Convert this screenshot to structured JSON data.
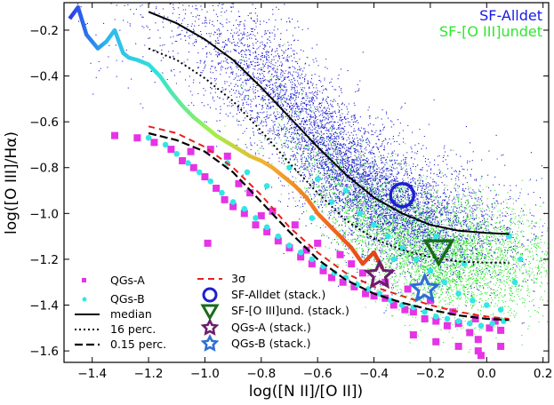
{
  "chart_data": {
    "type": "scatter",
    "xlabel": "log([N II]/[O II])",
    "ylabel": "log([O III]/Hα)",
    "xlim": [
      -1.5,
      0.22
    ],
    "ylim": [
      -1.65,
      -0.08
    ],
    "x_ticks": [
      -1.4,
      -1.2,
      -1.0,
      -0.8,
      -0.6,
      -0.4,
      -0.2,
      0.0,
      0.2
    ],
    "x_tick_labels": [
      "−1.4",
      "−1.2",
      "−1.0",
      "−0.8",
      "−0.6",
      "−0.4",
      "−0.2",
      "0.0",
      "0.2"
    ],
    "y_ticks": [
      -0.2,
      -0.4,
      -0.6,
      -0.8,
      -1.0,
      -1.2,
      -1.4,
      -1.6
    ],
    "y_tick_labels": [
      "−0.2",
      "−0.4",
      "−0.6",
      "−0.8",
      "−1.0",
      "−1.2",
      "−1.4",
      "−1.6"
    ],
    "corner_labels": [
      {
        "text": "SF-Alldet",
        "color": "#1a1ae6"
      },
      {
        "text": "SF-[O III]undet",
        "color": "#2ee82e"
      }
    ],
    "colors": {
      "sf_alldet": "#1f1fd0",
      "sf_oiii_undet": "#33e833",
      "qgs_a": "#e633e6",
      "qgs_b": "#33e6e6",
      "sigma": "#e62020",
      "star_a": "#6b1f6b",
      "star_b": "#2f6fd6",
      "triangle": "#1a6b1a"
    },
    "curves": {
      "median": {
        "x": [
          -1.2,
          -1.1,
          -1.0,
          -0.9,
          -0.8,
          -0.7,
          -0.6,
          -0.5,
          -0.4,
          -0.3,
          -0.2,
          -0.1,
          0.0,
          0.08
        ],
        "y": [
          -0.12,
          -0.17,
          -0.24,
          -0.33,
          -0.45,
          -0.58,
          -0.71,
          -0.83,
          -0.93,
          -1.0,
          -1.05,
          -1.075,
          -1.085,
          -1.09
        ]
      },
      "p16": {
        "x": [
          -1.2,
          -1.1,
          -1.0,
          -0.9,
          -0.8,
          -0.7,
          -0.6,
          -0.5,
          -0.4,
          -0.3,
          -0.2,
          -0.1,
          0.0,
          0.08
        ],
        "y": [
          -0.28,
          -0.33,
          -0.41,
          -0.51,
          -0.64,
          -0.78,
          -0.91,
          -1.03,
          -1.11,
          -1.16,
          -1.19,
          -1.21,
          -1.215,
          -1.215
        ]
      },
      "p015": {
        "x": [
          -1.2,
          -1.1,
          -1.0,
          -0.9,
          -0.8,
          -0.7,
          -0.6,
          -0.5,
          -0.4,
          -0.3,
          -0.2,
          -0.1,
          0.0,
          0.08
        ],
        "y": [
          -0.65,
          -0.68,
          -0.73,
          -0.82,
          -0.95,
          -1.08,
          -1.2,
          -1.29,
          -1.35,
          -1.39,
          -1.42,
          -1.445,
          -1.46,
          -1.465
        ]
      },
      "sigma3": {
        "x": [
          -1.2,
          -1.1,
          -1.0,
          -0.9,
          -0.8,
          -0.7,
          -0.6,
          -0.5,
          -0.4,
          -0.3,
          -0.2,
          -0.1,
          0.0,
          0.08
        ],
        "y": [
          -0.62,
          -0.65,
          -0.71,
          -0.8,
          -0.92,
          -1.06,
          -1.17,
          -1.26,
          -1.32,
          -1.36,
          -1.4,
          -1.43,
          -1.45,
          -1.46
        ]
      },
      "completeness": {
        "x": [
          -1.48,
          -1.45,
          -1.42,
          -1.38,
          -1.35,
          -1.32,
          -1.29,
          -1.27,
          -1.24,
          -1.2,
          -1.16,
          -1.12,
          -1.08,
          -1.04,
          -1.0,
          -0.96,
          -0.92,
          -0.88,
          -0.84,
          -0.8,
          -0.76,
          -0.72,
          -0.68,
          -0.64,
          -0.6,
          -0.56,
          -0.52,
          -0.48,
          -0.44,
          -0.4,
          -0.37
        ],
        "y": [
          -0.15,
          -0.1,
          -0.22,
          -0.28,
          -0.25,
          -0.2,
          -0.3,
          -0.32,
          -0.33,
          -0.35,
          -0.4,
          -0.47,
          -0.53,
          -0.58,
          -0.62,
          -0.66,
          -0.69,
          -0.72,
          -0.75,
          -0.77,
          -0.8,
          -0.84,
          -0.88,
          -0.93,
          -1.0,
          -1.05,
          -1.1,
          -1.15,
          -1.22,
          -1.17,
          -1.24
        ]
      }
    },
    "stacked_points": [
      {
        "name": "SF-Alldet (stack.)",
        "marker": "circle",
        "x": -0.3,
        "y": -0.92
      },
      {
        "name": "SF-[O III]und. (stack.)",
        "marker": "triangle",
        "x": -0.17,
        "y": -1.17
      },
      {
        "name": "QGs-A (stack.)",
        "marker": "star",
        "x": -0.38,
        "y": -1.27
      },
      {
        "name": "QGs-B (stack.)",
        "marker": "star",
        "x": -0.22,
        "y": -1.33
      }
    ],
    "qgs_a_points": [
      [
        -1.24,
        -0.67
      ],
      [
        -1.32,
        -0.66
      ],
      [
        -1.18,
        -0.69
      ],
      [
        -1.12,
        -0.72
      ],
      [
        -1.08,
        -0.77
      ],
      [
        -1.04,
        -0.8
      ],
      [
        -1.0,
        -0.84
      ],
      [
        -0.96,
        -0.89
      ],
      [
        -0.93,
        -0.94
      ],
      [
        -0.9,
        -0.97
      ],
      [
        -0.86,
        -1.0
      ],
      [
        -0.82,
        -1.05
      ],
      [
        -0.78,
        -1.08
      ],
      [
        -0.74,
        -1.12
      ],
      [
        -0.7,
        -1.15
      ],
      [
        -0.66,
        -1.19
      ],
      [
        -0.62,
        -1.22
      ],
      [
        -0.58,
        -1.25
      ],
      [
        -0.55,
        -1.28
      ],
      [
        -0.51,
        -1.3
      ],
      [
        -0.47,
        -1.32
      ],
      [
        -0.43,
        -1.35
      ],
      [
        -0.4,
        -1.36
      ],
      [
        -0.36,
        -1.37
      ],
      [
        -0.33,
        -1.4
      ],
      [
        -0.29,
        -1.42
      ],
      [
        -0.26,
        -1.43
      ],
      [
        -0.22,
        -1.46
      ],
      [
        -0.18,
        -1.47
      ],
      [
        -0.14,
        -1.49
      ],
      [
        -0.1,
        -1.48
      ],
      [
        -0.06,
        -1.52
      ],
      [
        -0.03,
        -1.55
      ],
      [
        0.01,
        -1.5
      ],
      [
        0.05,
        -1.51
      ],
      [
        -0.99,
        -1.13
      ],
      [
        -0.92,
        -0.75
      ],
      [
        -0.98,
        -0.72
      ],
      [
        -0.84,
        -0.91
      ],
      [
        -0.76,
        -0.99
      ],
      [
        -0.68,
        -1.05
      ],
      [
        -0.6,
        -1.13
      ],
      [
        -0.52,
        -1.18
      ],
      [
        -0.44,
        -1.26
      ],
      [
        -0.36,
        -1.3
      ],
      [
        -0.28,
        -1.33
      ],
      [
        -0.2,
        -1.38
      ],
      [
        -0.12,
        -1.43
      ],
      [
        -0.04,
        -1.46
      ],
      [
        0.03,
        -1.47
      ],
      [
        -0.26,
        -1.53
      ],
      [
        -0.18,
        -1.56
      ],
      [
        -0.1,
        -1.58
      ],
      [
        -0.03,
        -1.6
      ],
      [
        -0.02,
        -1.62
      ],
      [
        0.05,
        -1.58
      ],
      [
        -0.48,
        -1.22
      ],
      [
        -0.64,
        -1.16
      ],
      [
        -0.8,
        -1.01
      ],
      [
        -0.88,
        -0.87
      ],
      [
        -1.05,
        -0.73
      ]
    ],
    "qgs_b_points": [
      [
        -1.2,
        -0.67
      ],
      [
        -1.14,
        -0.7
      ],
      [
        -1.1,
        -0.74
      ],
      [
        -1.06,
        -0.78
      ],
      [
        -1.02,
        -0.82
      ],
      [
        -0.98,
        -0.86
      ],
      [
        -0.94,
        -0.91
      ],
      [
        -0.9,
        -0.95
      ],
      [
        -0.86,
        -0.98
      ],
      [
        -0.82,
        -1.02
      ],
      [
        -0.78,
        -1.06
      ],
      [
        -0.74,
        -1.1
      ],
      [
        -0.7,
        -1.14
      ],
      [
        -0.66,
        -1.17
      ],
      [
        -0.62,
        -1.2
      ],
      [
        -0.58,
        -1.23
      ],
      [
        -0.54,
        -1.26
      ],
      [
        -0.5,
        -1.28
      ],
      [
        -0.46,
        -1.31
      ],
      [
        -0.42,
        -1.33
      ],
      [
        -0.38,
        -1.35
      ],
      [
        -0.34,
        -1.38
      ],
      [
        -0.3,
        -1.4
      ],
      [
        -0.26,
        -1.41
      ],
      [
        -0.22,
        -1.43
      ],
      [
        -0.18,
        -1.45
      ],
      [
        -0.14,
        -1.46
      ],
      [
        -0.1,
        -1.47
      ],
      [
        -0.06,
        -1.48
      ],
      [
        -0.02,
        -1.49
      ],
      [
        0.02,
        -1.48
      ],
      [
        0.06,
        -1.47
      ],
      [
        -0.7,
        -0.8
      ],
      [
        -0.6,
        -0.85
      ],
      [
        -0.5,
        -0.9
      ],
      [
        -0.45,
        -1.0
      ],
      [
        -0.4,
        -1.05
      ],
      [
        -0.35,
        -1.1
      ],
      [
        -0.3,
        -1.15
      ],
      [
        -0.25,
        -1.2
      ],
      [
        -0.2,
        -1.25
      ],
      [
        -0.15,
        -1.3
      ],
      [
        -0.1,
        -1.35
      ],
      [
        -0.05,
        -1.38
      ],
      [
        0.0,
        -1.4
      ],
      [
        0.05,
        -1.42
      ],
      [
        0.1,
        -1.3
      ],
      [
        0.12,
        -1.2
      ],
      [
        0.08,
        -1.1
      ],
      [
        -0.55,
        -0.95
      ],
      [
        -0.62,
        -1.02
      ],
      [
        -0.78,
        -0.88
      ],
      [
        -0.85,
        -0.82
      ],
      [
        -0.92,
        -0.78
      ],
      [
        -0.33,
        -1.2
      ],
      [
        -0.18,
        -1.1
      ],
      [
        -0.08,
        -1.22
      ]
    ]
  },
  "legend": {
    "items": [
      {
        "label": "QGs-A"
      },
      {
        "label": "QGs-B"
      },
      {
        "label": "median"
      },
      {
        "label": "16 perc."
      },
      {
        "label": "0.15 perc."
      },
      {
        "label": "3σ"
      },
      {
        "label": "SF-Alldet (stack.)"
      },
      {
        "label": "SF-[O III]und. (stack.)"
      },
      {
        "label": "QGs-A (stack.)"
      },
      {
        "label": "QGs-B (stack.)"
      }
    ]
  }
}
